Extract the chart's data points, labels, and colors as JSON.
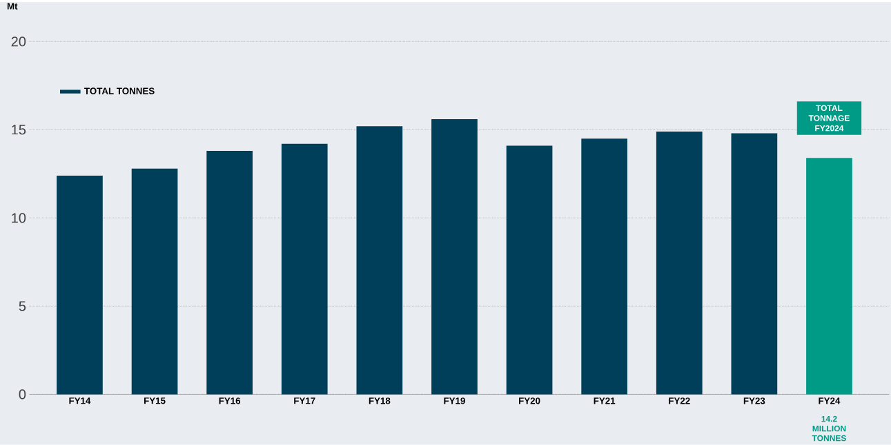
{
  "chart_data": {
    "type": "bar",
    "ylabel": "Mt",
    "categories": [
      "FY14",
      "FY15",
      "FY16",
      "FY17",
      "FY18",
      "FY19",
      "FY20",
      "FY21",
      "FY22",
      "FY23",
      "FY24"
    ],
    "series": [
      {
        "name": "TOTAL TONNES",
        "values": [
          12.4,
          12.8,
          13.8,
          14.2,
          15.2,
          15.6,
          14.1,
          14.5,
          14.9,
          14.8,
          13.4
        ],
        "colors": [
          "#003f5a",
          "#003f5a",
          "#003f5a",
          "#003f5a",
          "#003f5a",
          "#003f5a",
          "#003f5a",
          "#003f5a",
          "#003f5a",
          "#003f5a",
          "#009b87"
        ]
      }
    ],
    "ylim": [
      0,
      20
    ],
    "yticks": [
      0,
      5,
      10,
      15,
      20
    ],
    "grid": "y",
    "legend": "top left",
    "annotations": [
      "TOTAL TONNAGE FY2024",
      "14.2 MILLION TONNES"
    ]
  }
}
